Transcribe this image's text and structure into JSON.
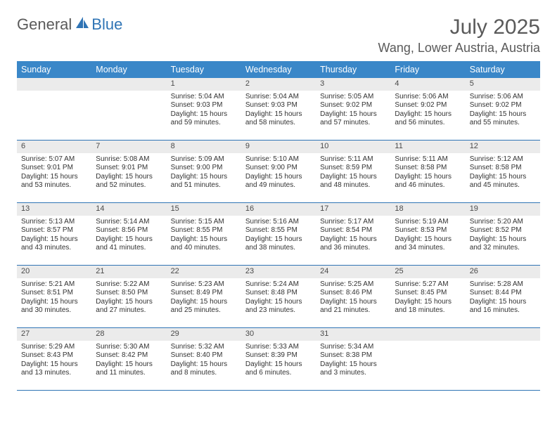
{
  "logo": {
    "text1": "General",
    "text2": "Blue"
  },
  "title": "July 2025",
  "location": "Wang, Lower Austria, Austria",
  "colors": {
    "header_bg": "#3a87c8",
    "header_text": "#ffffff",
    "daynum_bg": "#ebebeb",
    "border": "#2f74b5",
    "title_color": "#5a5a5a"
  },
  "dow": [
    "Sunday",
    "Monday",
    "Tuesday",
    "Wednesday",
    "Thursday",
    "Friday",
    "Saturday"
  ],
  "weeks": [
    [
      {
        "n": "",
        "sr": "",
        "ss": "",
        "dl": "",
        "dl2": ""
      },
      {
        "n": "",
        "sr": "",
        "ss": "",
        "dl": "",
        "dl2": ""
      },
      {
        "n": "1",
        "sr": "Sunrise: 5:04 AM",
        "ss": "Sunset: 9:03 PM",
        "dl": "Daylight: 15 hours",
        "dl2": "and 59 minutes."
      },
      {
        "n": "2",
        "sr": "Sunrise: 5:04 AM",
        "ss": "Sunset: 9:03 PM",
        "dl": "Daylight: 15 hours",
        "dl2": "and 58 minutes."
      },
      {
        "n": "3",
        "sr": "Sunrise: 5:05 AM",
        "ss": "Sunset: 9:02 PM",
        "dl": "Daylight: 15 hours",
        "dl2": "and 57 minutes."
      },
      {
        "n": "4",
        "sr": "Sunrise: 5:06 AM",
        "ss": "Sunset: 9:02 PM",
        "dl": "Daylight: 15 hours",
        "dl2": "and 56 minutes."
      },
      {
        "n": "5",
        "sr": "Sunrise: 5:06 AM",
        "ss": "Sunset: 9:02 PM",
        "dl": "Daylight: 15 hours",
        "dl2": "and 55 minutes."
      }
    ],
    [
      {
        "n": "6",
        "sr": "Sunrise: 5:07 AM",
        "ss": "Sunset: 9:01 PM",
        "dl": "Daylight: 15 hours",
        "dl2": "and 53 minutes."
      },
      {
        "n": "7",
        "sr": "Sunrise: 5:08 AM",
        "ss": "Sunset: 9:01 PM",
        "dl": "Daylight: 15 hours",
        "dl2": "and 52 minutes."
      },
      {
        "n": "8",
        "sr": "Sunrise: 5:09 AM",
        "ss": "Sunset: 9:00 PM",
        "dl": "Daylight: 15 hours",
        "dl2": "and 51 minutes."
      },
      {
        "n": "9",
        "sr": "Sunrise: 5:10 AM",
        "ss": "Sunset: 9:00 PM",
        "dl": "Daylight: 15 hours",
        "dl2": "and 49 minutes."
      },
      {
        "n": "10",
        "sr": "Sunrise: 5:11 AM",
        "ss": "Sunset: 8:59 PM",
        "dl": "Daylight: 15 hours",
        "dl2": "and 48 minutes."
      },
      {
        "n": "11",
        "sr": "Sunrise: 5:11 AM",
        "ss": "Sunset: 8:58 PM",
        "dl": "Daylight: 15 hours",
        "dl2": "and 46 minutes."
      },
      {
        "n": "12",
        "sr": "Sunrise: 5:12 AM",
        "ss": "Sunset: 8:58 PM",
        "dl": "Daylight: 15 hours",
        "dl2": "and 45 minutes."
      }
    ],
    [
      {
        "n": "13",
        "sr": "Sunrise: 5:13 AM",
        "ss": "Sunset: 8:57 PM",
        "dl": "Daylight: 15 hours",
        "dl2": "and 43 minutes."
      },
      {
        "n": "14",
        "sr": "Sunrise: 5:14 AM",
        "ss": "Sunset: 8:56 PM",
        "dl": "Daylight: 15 hours",
        "dl2": "and 41 minutes."
      },
      {
        "n": "15",
        "sr": "Sunrise: 5:15 AM",
        "ss": "Sunset: 8:55 PM",
        "dl": "Daylight: 15 hours",
        "dl2": "and 40 minutes."
      },
      {
        "n": "16",
        "sr": "Sunrise: 5:16 AM",
        "ss": "Sunset: 8:55 PM",
        "dl": "Daylight: 15 hours",
        "dl2": "and 38 minutes."
      },
      {
        "n": "17",
        "sr": "Sunrise: 5:17 AM",
        "ss": "Sunset: 8:54 PM",
        "dl": "Daylight: 15 hours",
        "dl2": "and 36 minutes."
      },
      {
        "n": "18",
        "sr": "Sunrise: 5:19 AM",
        "ss": "Sunset: 8:53 PM",
        "dl": "Daylight: 15 hours",
        "dl2": "and 34 minutes."
      },
      {
        "n": "19",
        "sr": "Sunrise: 5:20 AM",
        "ss": "Sunset: 8:52 PM",
        "dl": "Daylight: 15 hours",
        "dl2": "and 32 minutes."
      }
    ],
    [
      {
        "n": "20",
        "sr": "Sunrise: 5:21 AM",
        "ss": "Sunset: 8:51 PM",
        "dl": "Daylight: 15 hours",
        "dl2": "and 30 minutes."
      },
      {
        "n": "21",
        "sr": "Sunrise: 5:22 AM",
        "ss": "Sunset: 8:50 PM",
        "dl": "Daylight: 15 hours",
        "dl2": "and 27 minutes."
      },
      {
        "n": "22",
        "sr": "Sunrise: 5:23 AM",
        "ss": "Sunset: 8:49 PM",
        "dl": "Daylight: 15 hours",
        "dl2": "and 25 minutes."
      },
      {
        "n": "23",
        "sr": "Sunrise: 5:24 AM",
        "ss": "Sunset: 8:48 PM",
        "dl": "Daylight: 15 hours",
        "dl2": "and 23 minutes."
      },
      {
        "n": "24",
        "sr": "Sunrise: 5:25 AM",
        "ss": "Sunset: 8:46 PM",
        "dl": "Daylight: 15 hours",
        "dl2": "and 21 minutes."
      },
      {
        "n": "25",
        "sr": "Sunrise: 5:27 AM",
        "ss": "Sunset: 8:45 PM",
        "dl": "Daylight: 15 hours",
        "dl2": "and 18 minutes."
      },
      {
        "n": "26",
        "sr": "Sunrise: 5:28 AM",
        "ss": "Sunset: 8:44 PM",
        "dl": "Daylight: 15 hours",
        "dl2": "and 16 minutes."
      }
    ],
    [
      {
        "n": "27",
        "sr": "Sunrise: 5:29 AM",
        "ss": "Sunset: 8:43 PM",
        "dl": "Daylight: 15 hours",
        "dl2": "and 13 minutes."
      },
      {
        "n": "28",
        "sr": "Sunrise: 5:30 AM",
        "ss": "Sunset: 8:42 PM",
        "dl": "Daylight: 15 hours",
        "dl2": "and 11 minutes."
      },
      {
        "n": "29",
        "sr": "Sunrise: 5:32 AM",
        "ss": "Sunset: 8:40 PM",
        "dl": "Daylight: 15 hours",
        "dl2": "and 8 minutes."
      },
      {
        "n": "30",
        "sr": "Sunrise: 5:33 AM",
        "ss": "Sunset: 8:39 PM",
        "dl": "Daylight: 15 hours",
        "dl2": "and 6 minutes."
      },
      {
        "n": "31",
        "sr": "Sunrise: 5:34 AM",
        "ss": "Sunset: 8:38 PM",
        "dl": "Daylight: 15 hours",
        "dl2": "and 3 minutes."
      },
      {
        "n": "",
        "sr": "",
        "ss": "",
        "dl": "",
        "dl2": ""
      },
      {
        "n": "",
        "sr": "",
        "ss": "",
        "dl": "",
        "dl2": ""
      }
    ]
  ]
}
